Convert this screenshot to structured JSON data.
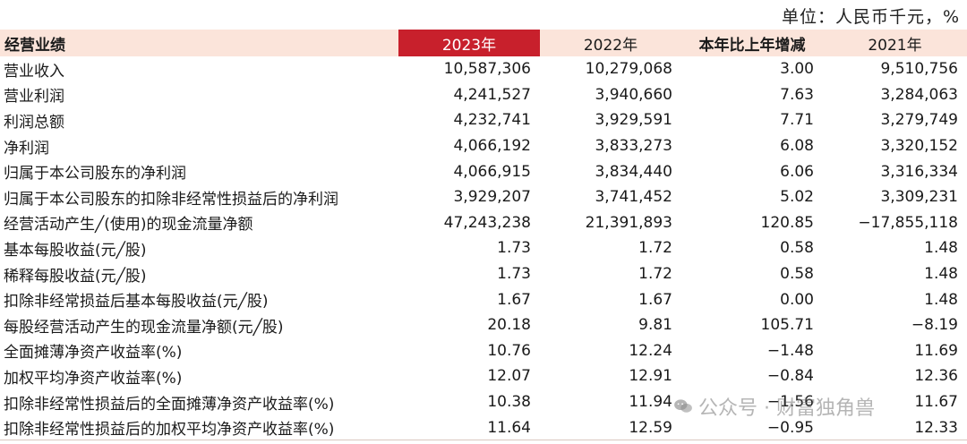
{
  "unit_text": "单位：人民币千元，%",
  "header": {
    "label": "经营业绩",
    "col_2023": "2023年",
    "col_2022": "2022年",
    "col_change": "本年比上年增减",
    "col_2021": "2021年"
  },
  "rows": [
    {
      "label": "营业收入",
      "v2023": "10,587,306",
      "v2022": "10,279,068",
      "change": "3.00",
      "v2021": "9,510,756"
    },
    {
      "label": "营业利润",
      "v2023": "4,241,527",
      "v2022": "3,940,660",
      "change": "7.63",
      "v2021": "3,284,063"
    },
    {
      "label": "利润总额",
      "v2023": "4,232,741",
      "v2022": "3,929,591",
      "change": "7.71",
      "v2021": "3,279,749"
    },
    {
      "label": "净利润",
      "v2023": "4,066,192",
      "v2022": "3,833,273",
      "change": "6.08",
      "v2021": "3,320,152"
    },
    {
      "label": "归属于本公司股东的净利润",
      "v2023": "4,066,915",
      "v2022": "3,834,440",
      "change": "6.06",
      "v2021": "3,316,334"
    },
    {
      "label": "归属于本公司股东的扣除非经常性损益后的净利润",
      "v2023": "3,929,207",
      "v2022": "3,741,452",
      "change": "5.02",
      "v2021": "3,309,231"
    },
    {
      "label": "经营活动产生╱(使用)的现金流量净额",
      "v2023": "47,243,238",
      "v2022": "21,391,893",
      "change": "120.85",
      "v2021": "−17,855,118"
    },
    {
      "label": "基本每股收益(元╱股)",
      "v2023": "1.73",
      "v2022": "1.72",
      "change": "0.58",
      "v2021": "1.48"
    },
    {
      "label": "稀释每股收益(元╱股)",
      "v2023": "1.73",
      "v2022": "1.72",
      "change": "0.58",
      "v2021": "1.48"
    },
    {
      "label": "扣除非经常损益后基本每股收益(元╱股)",
      "v2023": "1.67",
      "v2022": "1.67",
      "change": "0.00",
      "v2021": "1.48"
    },
    {
      "label": "每股经营活动产生的现金流量净额(元╱股)",
      "v2023": "20.18",
      "v2022": "9.81",
      "change": "105.71",
      "v2021": "−8.19"
    },
    {
      "label": "全面摊薄净资产收益率(%)",
      "v2023": "10.76",
      "v2022": "12.24",
      "change": "−1.48",
      "v2021": "11.69"
    },
    {
      "label": "加权平均净资产收益率(%)",
      "v2023": "12.07",
      "v2022": "12.91",
      "change": "−0.84",
      "v2021": "12.36"
    },
    {
      "label": "扣除非经常性损益后的全面摊薄净资产收益率(%)",
      "v2023": "10.38",
      "v2022": "11.94",
      "change": "−1.56",
      "v2021": "11.67"
    },
    {
      "label": "扣除非经常性损益后的加权平均净资产收益率(%)",
      "v2023": "11.64",
      "v2022": "12.59",
      "change": "−0.95",
      "v2021": "12.33"
    }
  ],
  "watermark": {
    "icon": "wechat-icon",
    "text": "公众号 · 财富独角兽"
  },
  "colors": {
    "header_bg": "#fbe4da",
    "highlight_col": "#c8202c"
  }
}
